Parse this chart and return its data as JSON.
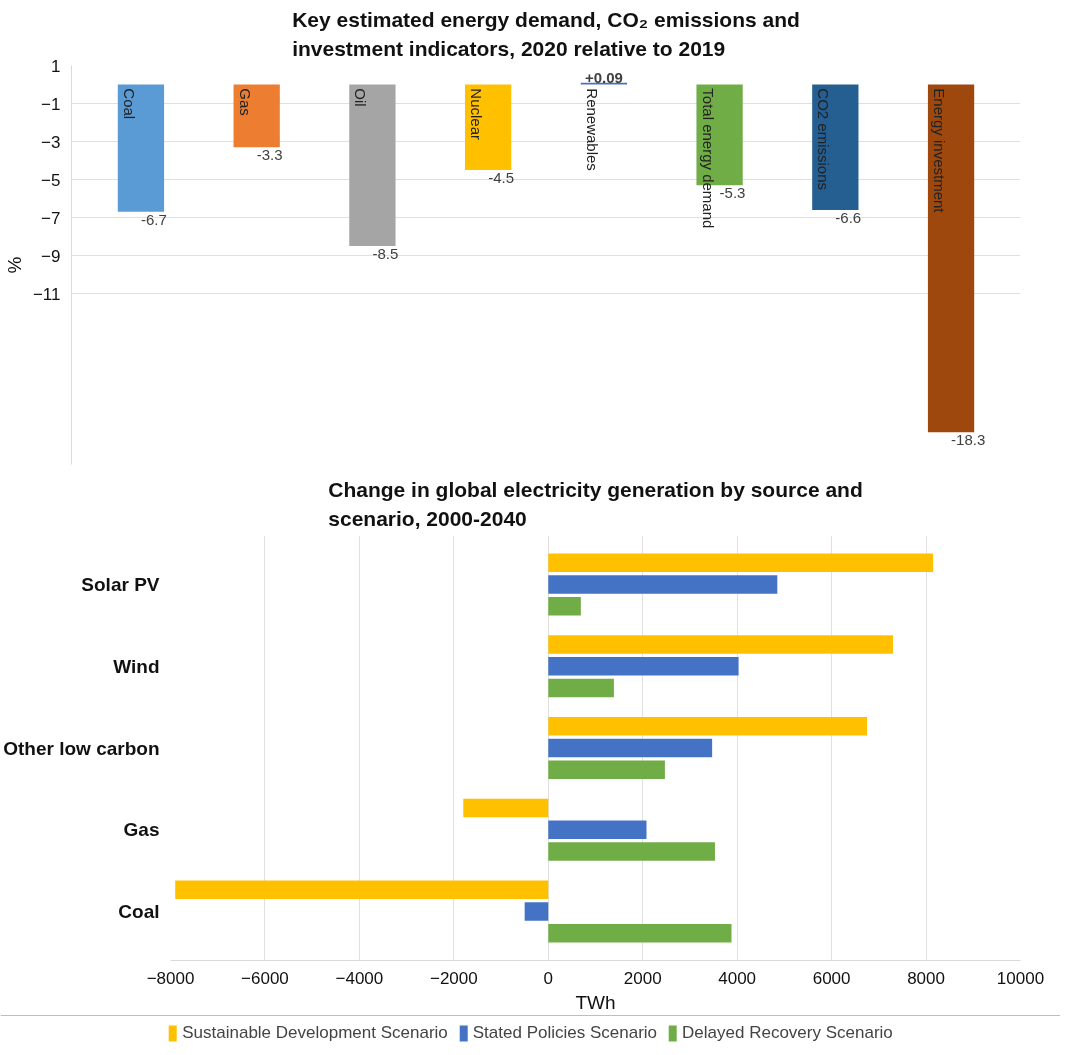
{
  "chart_data": [
    {
      "type": "bar",
      "title": "Key estimated energy demand, CO₂ emissions and investment indicators, 2020 relative to 2019",
      "ylabel": "%",
      "categories": [
        "Coal",
        "Gas",
        "Oil",
        "Nuclear",
        "Renewables",
        "Total energy demand",
        "CO2 emissions",
        "Energy investment"
      ],
      "values": [
        -6.7,
        -3.3,
        -8.5,
        -4.5,
        0.09,
        -5.3,
        -6.6,
        -18.3
      ],
      "value_labels": [
        "-6.7",
        "-3.3",
        "-8.5",
        "-4.5",
        "+0.09",
        "-5.3",
        "-6.6",
        "-18.3"
      ],
      "colors": [
        "#5b9bd5",
        "#ed7d31",
        "#a5a5a5",
        "#ffc000",
        "#4472c4",
        "#70ad47",
        "#255e91",
        "#9e480e"
      ],
      "ylim": [
        -20,
        1
      ],
      "yticks": [
        1,
        -1,
        -3,
        -5,
        -7,
        -9,
        -11
      ],
      "grid": "y",
      "tick_labels": "y"
    },
    {
      "type": "bar",
      "orientation": "horizontal",
      "title": "Change in global electricity generation by source and scenario, 2000-2040",
      "xlabel": "TWh",
      "categories": [
        "Solar PV",
        "Wind",
        "Other low carbon",
        "Gas",
        "Coal"
      ],
      "series": [
        {
          "name": "Sustainable Development Scenario",
          "color": "#ffc000",
          "values": [
            8150,
            7300,
            6750,
            -1800,
            -7900
          ]
        },
        {
          "name": "Stated Policies Scenario",
          "color": "#4472c4",
          "values": [
            4850,
            4030,
            3470,
            2080,
            -500
          ]
        },
        {
          "name": "Delayed Recovery Scenario",
          "color": "#70ad47",
          "values": [
            690,
            1390,
            2470,
            3530,
            3880
          ]
        }
      ],
      "xlim": [
        -8000,
        10000
      ],
      "xticks": [
        -8000,
        -6000,
        -4000,
        -2000,
        0,
        2000,
        4000,
        6000,
        8000,
        10000
      ],
      "grid": "x",
      "legend": "bottom"
    }
  ]
}
